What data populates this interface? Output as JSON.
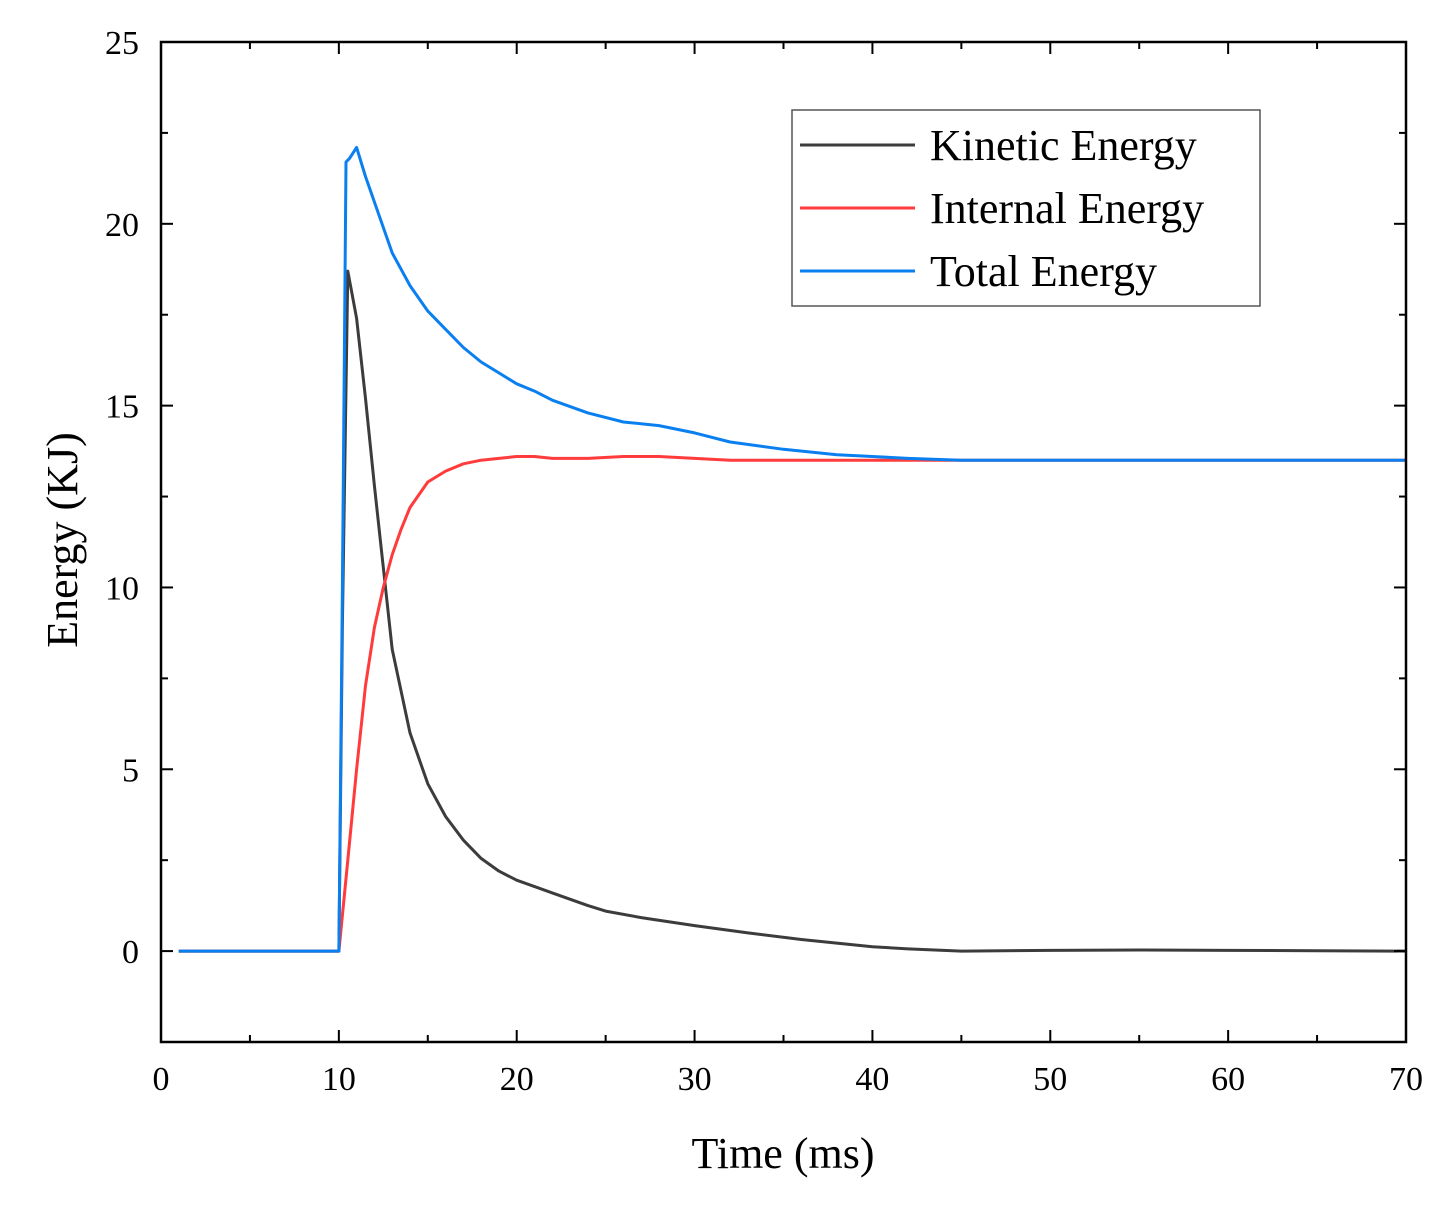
{
  "chart_data": {
    "type": "line",
    "title": "",
    "xlabel": "Time (ms)",
    "ylabel": "Energy (KJ)",
    "xlim": [
      0,
      70
    ],
    "ylim": [
      -2.5,
      25
    ],
    "xticks": [
      "0",
      "10",
      "20",
      "30",
      "40",
      "50",
      "60",
      "70"
    ],
    "yticks": [
      "0",
      "5",
      "10",
      "15",
      "20",
      "25"
    ],
    "grid": false,
    "legend_position": "top-right",
    "series": [
      {
        "name": "Kinetic Energy",
        "color": "#3c3c3c",
        "points": [
          [
            1,
            0
          ],
          [
            10,
            0
          ],
          [
            10.2,
            9
          ],
          [
            10.5,
            18.7
          ],
          [
            11,
            17.4
          ],
          [
            11.5,
            15.2
          ],
          [
            12,
            12.8
          ],
          [
            13,
            8.3
          ],
          [
            14,
            6.0
          ],
          [
            15,
            4.6
          ],
          [
            16,
            3.7
          ],
          [
            17,
            3.05
          ],
          [
            18,
            2.55
          ],
          [
            19,
            2.2
          ],
          [
            20,
            1.95
          ],
          [
            22,
            1.6
          ],
          [
            24,
            1.25
          ],
          [
            25,
            1.1
          ],
          [
            27,
            0.92
          ],
          [
            30,
            0.7
          ],
          [
            33,
            0.5
          ],
          [
            36,
            0.32
          ],
          [
            40,
            0.12
          ],
          [
            42,
            0.06
          ],
          [
            45,
            0.0
          ],
          [
            50,
            0.02
          ],
          [
            55,
            0.03
          ],
          [
            60,
            0.02
          ],
          [
            65,
            0.01
          ],
          [
            70,
            0.0
          ]
        ]
      },
      {
        "name": "Internal Energy",
        "color": "#ff3b3b",
        "points": [
          [
            1,
            0
          ],
          [
            10,
            0
          ],
          [
            10.5,
            2.5
          ],
          [
            11,
            5.0
          ],
          [
            11.5,
            7.3
          ],
          [
            12,
            8.9
          ],
          [
            12.5,
            10.0
          ],
          [
            13,
            10.9
          ],
          [
            13.5,
            11.6
          ],
          [
            14,
            12.2
          ],
          [
            15,
            12.9
          ],
          [
            16,
            13.2
          ],
          [
            17,
            13.4
          ],
          [
            18,
            13.5
          ],
          [
            19,
            13.55
          ],
          [
            20,
            13.6
          ],
          [
            21,
            13.6
          ],
          [
            22,
            13.55
          ],
          [
            24,
            13.55
          ],
          [
            26,
            13.6
          ],
          [
            28,
            13.6
          ],
          [
            30,
            13.55
          ],
          [
            32,
            13.5
          ],
          [
            35,
            13.5
          ],
          [
            40,
            13.5
          ],
          [
            45,
            13.5
          ],
          [
            50,
            13.5
          ],
          [
            55,
            13.5
          ],
          [
            60,
            13.5
          ],
          [
            65,
            13.5
          ],
          [
            70,
            13.5
          ]
        ]
      },
      {
        "name": "Total Energy",
        "color": "#0a7ff0",
        "points": [
          [
            1,
            0
          ],
          [
            10,
            0
          ],
          [
            10.2,
            10
          ],
          [
            10.4,
            21.7
          ],
          [
            10.6,
            21.8
          ],
          [
            11,
            22.1
          ],
          [
            11.5,
            21.3
          ],
          [
            12,
            20.6
          ],
          [
            13,
            19.2
          ],
          [
            14,
            18.3
          ],
          [
            15,
            17.6
          ],
          [
            16,
            17.1
          ],
          [
            17,
            16.6
          ],
          [
            18,
            16.2
          ],
          [
            19,
            15.9
          ],
          [
            20,
            15.6
          ],
          [
            21,
            15.4
          ],
          [
            22,
            15.15
          ],
          [
            24,
            14.8
          ],
          [
            26,
            14.55
          ],
          [
            28,
            14.45
          ],
          [
            30,
            14.25
          ],
          [
            32,
            14.0
          ],
          [
            35,
            13.8
          ],
          [
            38,
            13.65
          ],
          [
            40,
            13.6
          ],
          [
            42,
            13.55
          ],
          [
            45,
            13.5
          ],
          [
            50,
            13.5
          ],
          [
            55,
            13.5
          ],
          [
            60,
            13.5
          ],
          [
            65,
            13.5
          ],
          [
            70,
            13.5
          ]
        ]
      }
    ]
  }
}
